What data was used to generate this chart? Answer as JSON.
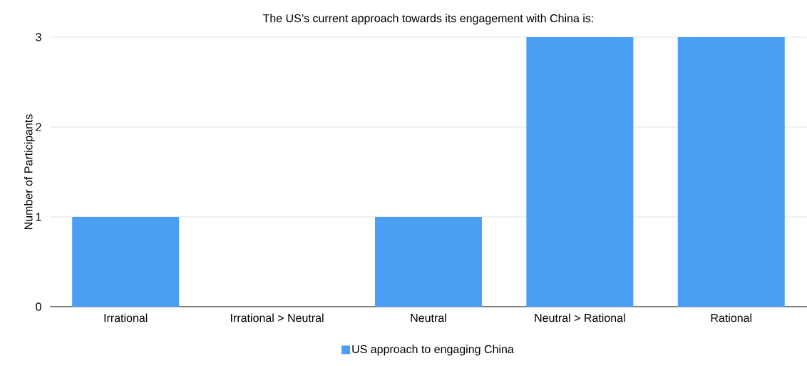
{
  "chart_data": {
    "type": "bar",
    "title": "The US’s current approach towards its engagement with China is:",
    "ylabel": "Number of Participants",
    "categories": [
      "Irrational",
      "Irrational > Neutral",
      "Neutral",
      "Neutral > Rational",
      "Rational"
    ],
    "series": [
      {
        "name": "US approach to engaging China",
        "color": "#4a9ff5",
        "values": [
          1,
          0,
          1,
          3,
          3
        ]
      }
    ],
    "ylim": [
      0,
      3
    ],
    "yticks": [
      0,
      1,
      2,
      3
    ],
    "grid": "y",
    "legend": "bottom"
  }
}
